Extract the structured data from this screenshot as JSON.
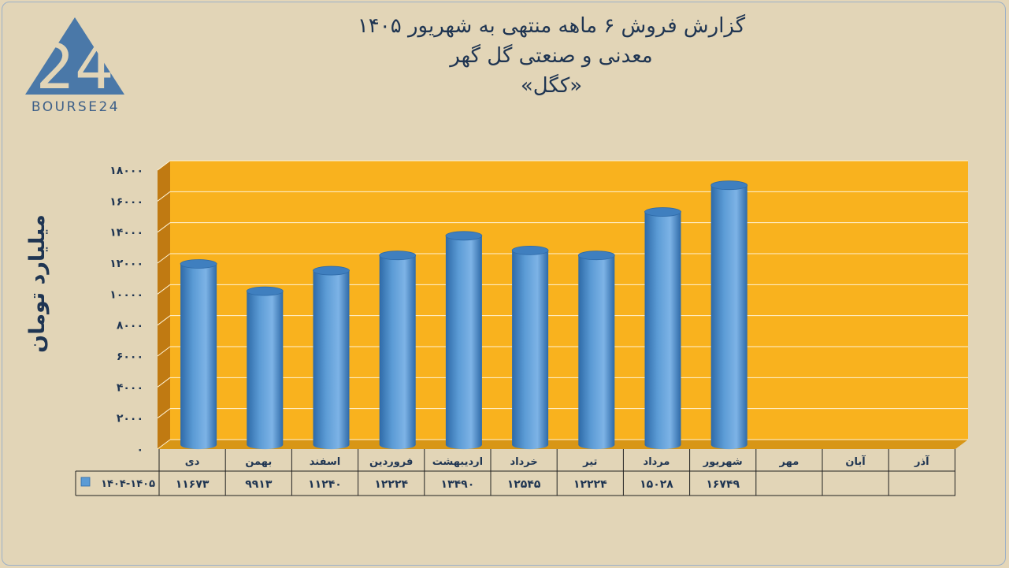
{
  "logo": {
    "text": "BOURSE24",
    "mark": "24"
  },
  "title_lines": [
    "گزارش  فروش ۶ ماهه منتهی به شهریور ۱۴۰۵",
    "معدنی و صنعتی گل گهر",
    "«کگل»"
  ],
  "colors": {
    "background": "#e2d5b7",
    "plot_area": "#f9b21e",
    "plot_side": "#c07a12",
    "bar": "#5b9bd5",
    "bar_dark": "#2e6aa8",
    "text": "#1f3552"
  },
  "chart_data": {
    "type": "bar",
    "ylabel": "میلیارد تومان",
    "ylim": [
      0,
      18000
    ],
    "yticks": [
      0,
      2000,
      4000,
      6000,
      8000,
      10000,
      12000,
      14000,
      16000,
      18000
    ],
    "ytick_labels": [
      "0",
      "2000",
      "4000",
      "6000",
      "8000",
      "10000",
      "12000",
      "14000",
      "16000",
      "18000"
    ],
    "categories": [
      "دی",
      "بهمن",
      "اسفند",
      "فروردین",
      "اردیبهشت",
      "خرداد",
      "تیر",
      "مرداد",
      "شهریور",
      "مهر",
      "آبان",
      "آذر"
    ],
    "series": [
      {
        "name": "1404-1405",
        "values": [
          11673,
          9913,
          11240,
          12224,
          13490,
          12545,
          12224,
          15028,
          16749,
          null,
          null,
          null
        ],
        "labels": [
          "11673",
          "9913",
          "11240",
          "12224",
          "13490",
          "12545",
          "12224",
          "15028",
          "16749",
          "",
          "",
          ""
        ]
      }
    ],
    "grid": true,
    "legend": "data-table"
  }
}
